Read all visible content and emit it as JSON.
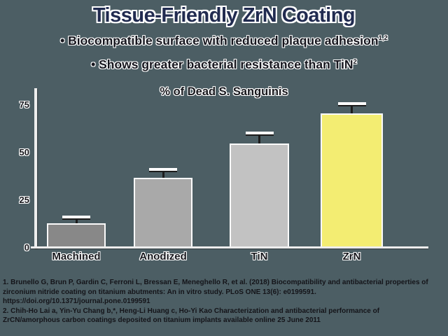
{
  "slide": {
    "title": "Tissue-Friendly ZrN Coating",
    "bullet_char": "•",
    "bullets": [
      {
        "text": "Biocompatible surface with reduced plaque adhesion",
        "superscript": "1,2"
      },
      {
        "text": "Shows greater bacterial resistance than TiN",
        "superscript": "2"
      }
    ],
    "footnotes": [
      "1. Brunello G, Brun P, Gardin C, Ferroni L, Bressan E, Meneghello R, et al. (2018) Biocompatibility and antibacterial properties of zirconium nitride coating on titanium abutments: An in vitro study. PLoS ONE 13(6): e0199591. https://doi.org/10.1371/journal.pone.0199591",
      "2. Chih-Ho Lai a, Yin-Yu Chang b,*, Heng-Li Huang c, Ho-Yi Kao Characterization and antibacterial performance of ZrCN/amorphous carbon coatings deposited on titanium implants available online 25 June 2011"
    ]
  },
  "chart_data": {
    "type": "bar",
    "title": "% of Dead S. Sanguinis",
    "categories": [
      "Machined",
      "Anodized",
      "TiN",
      "ZrN"
    ],
    "values": [
      12,
      36,
      54,
      70
    ],
    "errors": [
      2,
      3,
      4,
      3.5
    ],
    "bar_colors": [
      "#888888",
      "#a9a9a9",
      "#c2c2c2",
      "#f3ed72"
    ],
    "highlight_category": "ZrN",
    "xlabel": "",
    "ylabel": "",
    "yticks": [
      0,
      25,
      50,
      75
    ],
    "ylim": [
      0,
      82
    ],
    "grid": false,
    "legend": false,
    "error_bars": true
  },
  "colors": {
    "background": "#4c5e64",
    "title_text": "#212b50",
    "body_text": "#15151d",
    "axis": "#ededed",
    "accent_yellow": "#f3ed72"
  }
}
